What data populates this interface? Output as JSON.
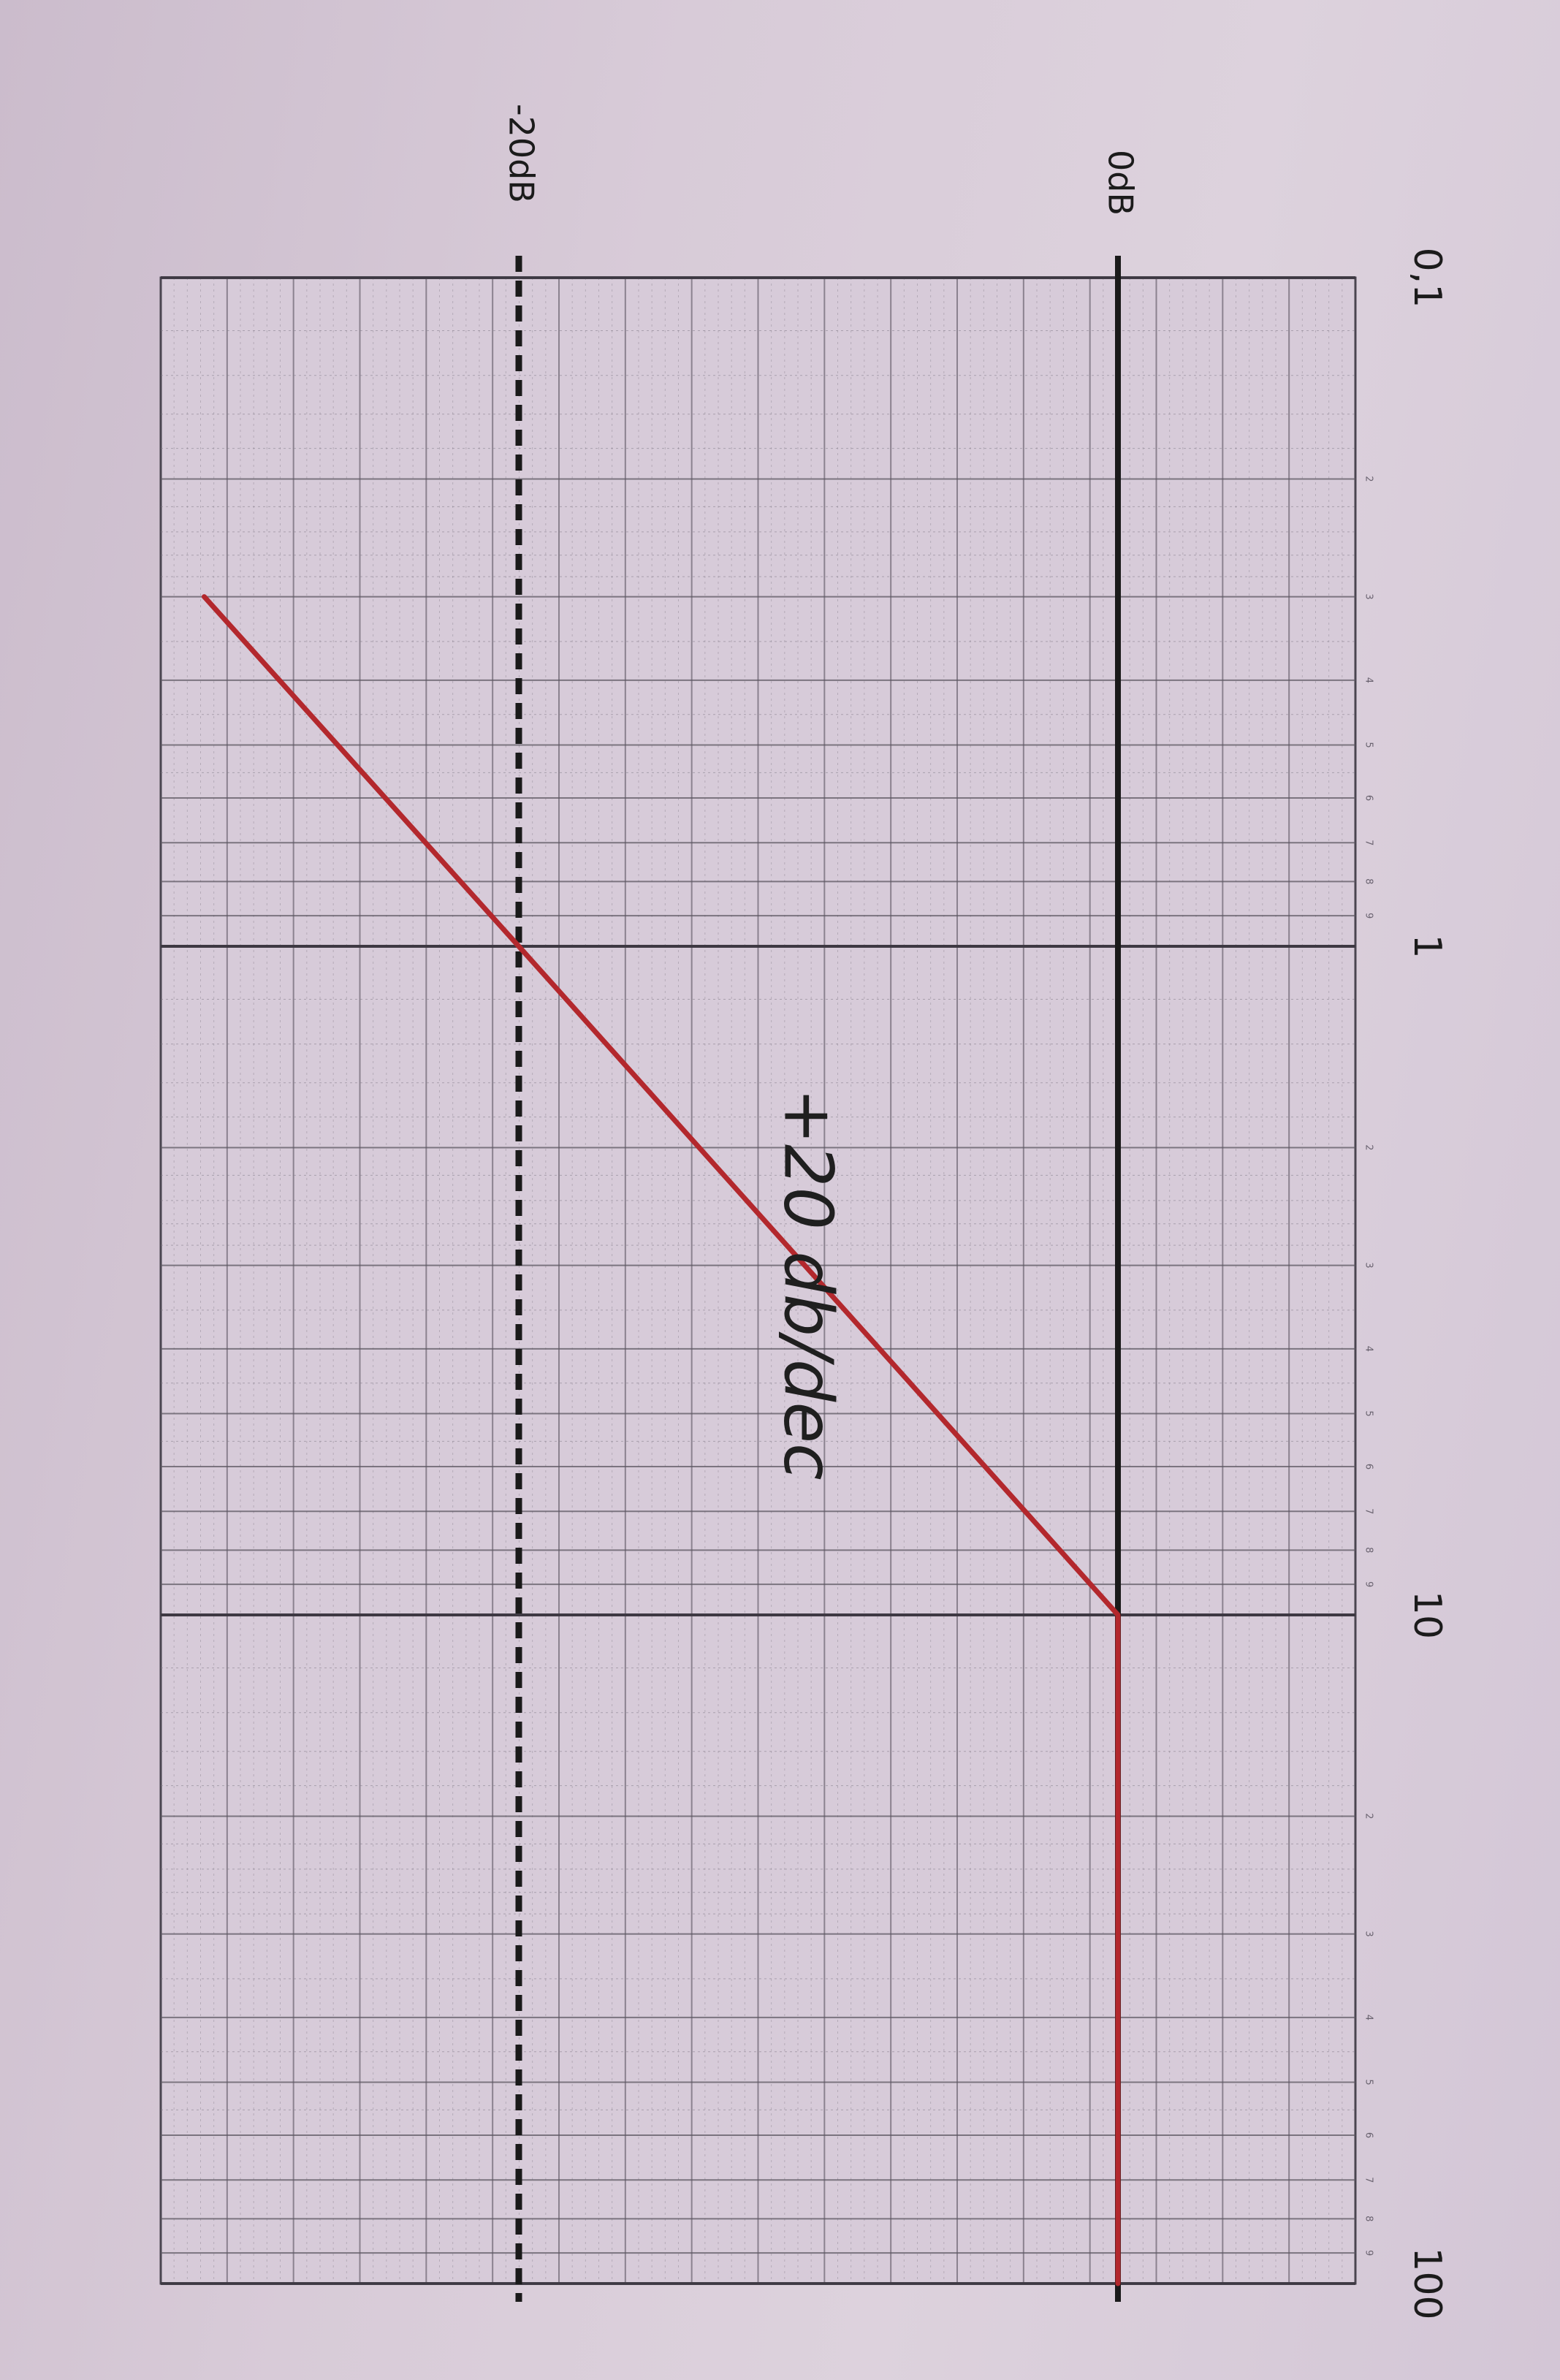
{
  "chart_data": {
    "type": "line",
    "x_scale": "log",
    "x_ticks": [
      {
        "value": 0.1,
        "label": "0,1"
      },
      {
        "value": 1,
        "label": "1"
      },
      {
        "value": 10,
        "label": "10"
      },
      {
        "value": 100,
        "label": "100"
      }
    ],
    "minor_tick_labels": [
      "2",
      "3",
      "4",
      "5",
      "6",
      "7",
      "8",
      "9"
    ],
    "y_ref_lines": [
      {
        "value": 0,
        "label": "0dB",
        "style": "solid",
        "color": "#1a1a1a"
      },
      {
        "value": -20,
        "label": "-20dB",
        "style": "dashed",
        "color": "#1a1a1a"
      }
    ],
    "series": [
      {
        "color": "#b3282d",
        "x": [
          0.3,
          1,
          10,
          100
        ],
        "y": [
          -30.5,
          -20,
          0,
          0
        ]
      }
    ],
    "annotation": {
      "text": "+20 db/dec",
      "x": 3.2,
      "y": -10
    },
    "grid": true,
    "orientation": "rotated-90"
  }
}
